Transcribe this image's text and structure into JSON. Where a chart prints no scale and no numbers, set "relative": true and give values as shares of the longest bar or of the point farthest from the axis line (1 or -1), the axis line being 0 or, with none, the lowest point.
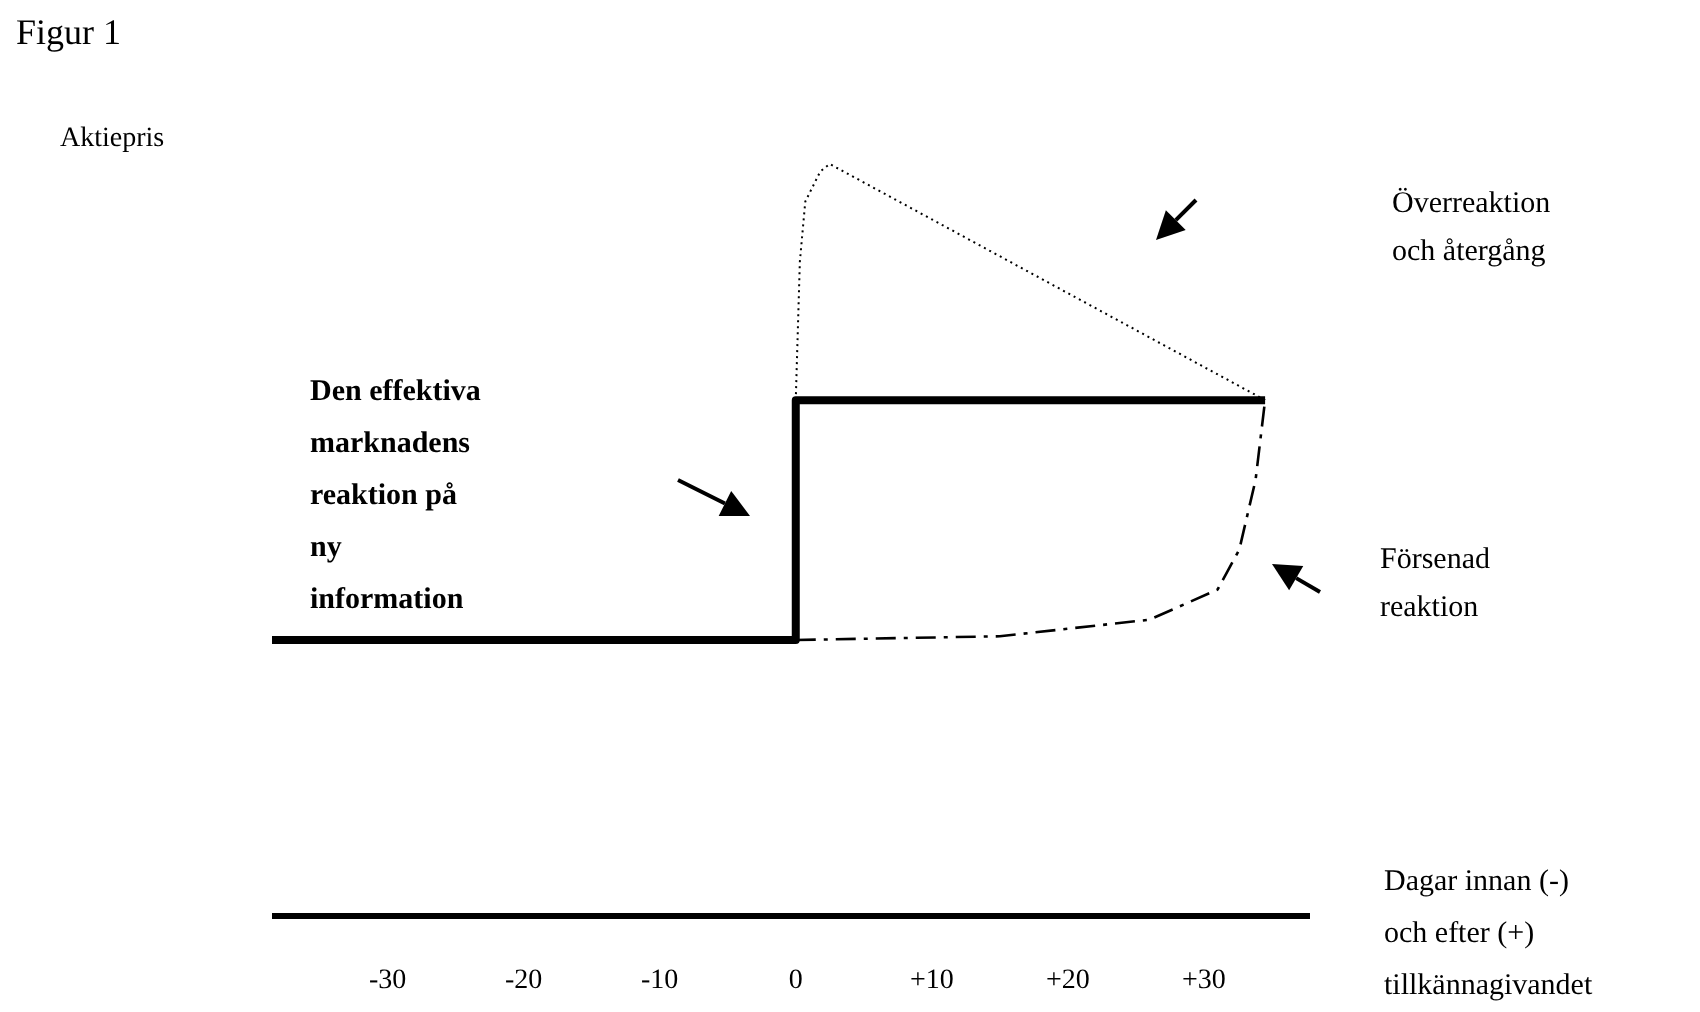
{
  "chart_data": {
    "type": "line",
    "title": "Figur 1",
    "ylabel": "Aktiepris",
    "xlabel": "Dagar innan (-)\noch efter (+)\ntillkännagivandet",
    "relative": true,
    "xlim": [
      -38.5,
      37.8
    ],
    "xticks": [
      {
        "value": -30,
        "label": "-30"
      },
      {
        "value": -20,
        "label": "-20"
      },
      {
        "value": -10,
        "label": "-10"
      },
      {
        "value": 0,
        "label": "0"
      },
      {
        "value": 10,
        "label": "+10"
      },
      {
        "value": 20,
        "label": "+20"
      },
      {
        "value": 30,
        "label": "+30"
      }
    ],
    "marker": "none",
    "annotations": [
      "Den effektiva\nmarknadens\nreaktion på\nny\ninformation",
      "Överreaktion\noch återgång",
      "Försenad\nreaktion"
    ],
    "series": [
      {
        "color": "#000000",
        "line_style": "solid",
        "x": [
          -38.5,
          0,
          0,
          34.5
        ],
        "values": [
          0.367,
          0.367,
          0.686,
          0.686
        ]
      },
      {
        "color": "#000000",
        "line_style": "dotted",
        "x": [
          0,
          0.3,
          0.7,
          1.8,
          2.5,
          34.5
        ],
        "values": [
          0.686,
          0.87,
          0.95,
          0.99,
          1,
          0.686
        ]
      },
      {
        "color": "#000000",
        "line_style": "dashed",
        "x": [
          0,
          15,
          26,
          31,
          32.6,
          33.8,
          34.5
        ],
        "values": [
          0.367,
          0.372,
          0.394,
          0.434,
          0.487,
          0.58,
          0.686
        ]
      }
    ]
  }
}
